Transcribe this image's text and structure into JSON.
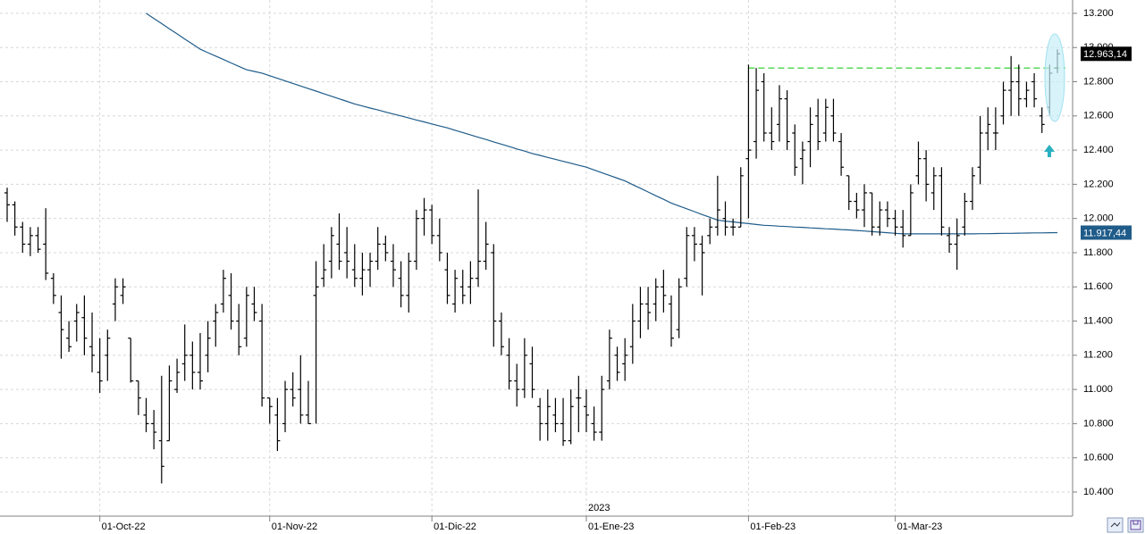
{
  "chart_data": {
    "type": "ohlc",
    "categories": [
      null,
      null,
      null,
      null,
      null,
      null,
      null,
      null,
      null,
      null,
      null,
      null,
      "01-Oct-22",
      null,
      null,
      null,
      null,
      null,
      null,
      null,
      null,
      null,
      null,
      null,
      null,
      null,
      null,
      null,
      null,
      null,
      null,
      null,
      null,
      null,
      "01-Nov-22",
      null,
      null,
      null,
      null,
      null,
      null,
      null,
      null,
      null,
      null,
      null,
      null,
      null,
      null,
      null,
      null,
      null,
      null,
      null,
      null,
      "01-Dic-22",
      null,
      null,
      null,
      null,
      null,
      null,
      null,
      null,
      null,
      null,
      null,
      null,
      null,
      null,
      null,
      null,
      null,
      null,
      null,
      "01-Ene-23",
      null,
      null,
      null,
      null,
      null,
      null,
      null,
      null,
      null,
      null,
      null,
      null,
      null,
      null,
      null,
      null,
      null,
      null,
      null,
      null,
      "01-Feb-23",
      null,
      null,
      null,
      null,
      null,
      null,
      null,
      null,
      null,
      null,
      null,
      null,
      null,
      null,
      null,
      null,
      null,
      null,
      "01-Mar-23",
      null,
      null,
      null,
      null,
      null,
      null,
      null,
      null,
      null,
      null,
      null,
      null,
      null,
      null,
      null,
      null,
      null,
      null,
      null,
      null,
      null
    ],
    "year_label": "2023",
    "ylim": [
      10259,
      13278
    ],
    "yticks": [
      {
        "value": 10400,
        "label": "10.400"
      },
      {
        "value": 10600,
        "label": "10.600"
      },
      {
        "value": 10800,
        "label": "10.800"
      },
      {
        "value": 11000,
        "label": "11.000"
      },
      {
        "value": 11200,
        "label": "11.200"
      },
      {
        "value": 11400,
        "label": "11.400"
      },
      {
        "value": 11600,
        "label": "11.600"
      },
      {
        "value": 11800,
        "label": "11.800"
      },
      {
        "value": 12000,
        "label": "12.000"
      },
      {
        "value": 12200,
        "label": "12.200"
      },
      {
        "value": 12400,
        "label": "12.400"
      },
      {
        "value": 12600,
        "label": "12.600"
      },
      {
        "value": 12800,
        "label": "12.800"
      },
      {
        "value": 13000,
        "label": "13.000"
      },
      {
        "value": 13200,
        "label": "13.200"
      }
    ],
    "grid": true,
    "ohlc": {
      "color": "#000000",
      "last_label": "12.963,14",
      "open": [
        12150,
        12080,
        11950,
        11850,
        11900,
        11850,
        11650,
        11450,
        11300,
        11400,
        11420,
        11250,
        11100,
        11200,
        11500,
        11550,
        11300,
        11050,
        10850,
        10800,
        10700,
        10700,
        11000,
        11150,
        11200,
        11100,
        11200,
        11400,
        11500,
        11550,
        11400,
        11300,
        11500,
        11400,
        10950,
        10850,
        10800,
        11000,
        11000,
        10850,
        11550,
        11650,
        11750,
        11850,
        11800,
        11700,
        11650,
        11700,
        11750,
        11850,
        11750,
        11650,
        11550,
        11750,
        12000,
        12050,
        11900,
        11700,
        11500,
        11600,
        11600,
        11650,
        11750,
        11800,
        11400,
        11200,
        11050,
        11000,
        11150,
        10900,
        10800,
        10850,
        10800,
        10700,
        10950,
        10900,
        10800,
        10750,
        11050,
        11200,
        11150,
        11250,
        11400,
        11500,
        11500,
        11600,
        11500,
        11350,
        11650,
        11900,
        11850,
        11900,
        11950,
        12000,
        11950,
        11950,
        12350,
        12450,
        12800,
        12500,
        12550,
        12700,
        12500,
        12350,
        12450,
        12600,
        12500,
        12600,
        12450,
        12250,
        12100,
        12050,
        12150,
        11950,
        12050,
        12000,
        11950,
        11900,
        12250,
        12350,
        12150,
        12250,
        11900,
        11850,
        11950,
        12100,
        12300,
        12500,
        12500,
        12600,
        12750,
        12800,
        12700,
        12800,
        12600,
        12650,
        12880
      ],
      "high": [
        12180,
        12100,
        11980,
        11950,
        11950,
        12060,
        11680,
        11550,
        11400,
        11500,
        11550,
        11450,
        11300,
        11350,
        11650,
        11650,
        11300,
        11050,
        10950,
        10880,
        11080,
        11140,
        11180,
        11380,
        11280,
        11330,
        11400,
        11500,
        11700,
        11680,
        11500,
        11600,
        11600,
        11500,
        10950,
        10950,
        11050,
        11100,
        11200,
        11050,
        11750,
        11850,
        11950,
        12030,
        11950,
        11850,
        11800,
        11800,
        11950,
        11900,
        11850,
        11750,
        11800,
        12050,
        12120,
        12080,
        12000,
        11800,
        11700,
        11700,
        11750,
        12170,
        11980,
        11850,
        11450,
        11300,
        11150,
        11300,
        11250,
        10950,
        11000,
        10950,
        10950,
        11000,
        11080,
        11000,
        10900,
        11080,
        11350,
        11250,
        11300,
        11500,
        11600,
        11600,
        11650,
        11700,
        11550,
        11650,
        11950,
        11950,
        11900,
        12000,
        12250,
        12100,
        12000,
        12300,
        12900,
        12880,
        12850,
        12650,
        12780,
        12750,
        12550,
        12450,
        12650,
        12700,
        12700,
        12700,
        12500,
        12250,
        12150,
        12200,
        12150,
        12100,
        12100,
        12050,
        12050,
        12200,
        12450,
        12400,
        12300,
        12300,
        11950,
        12000,
        12150,
        12300,
        12600,
        12650,
        12650,
        12800,
        12950,
        12900,
        12800,
        12850,
        12650,
        12900,
        12990
      ],
      "low": [
        11980,
        11900,
        11800,
        11780,
        11800,
        11640,
        11500,
        11180,
        11220,
        11280,
        11200,
        11100,
        10980,
        11050,
        11400,
        11500,
        11040,
        10850,
        10750,
        10650,
        10450,
        10700,
        10980,
        11050,
        11000,
        11000,
        11100,
        11250,
        11450,
        11350,
        11200,
        11250,
        11400,
        10900,
        10800,
        10640,
        10750,
        10900,
        10800,
        10800,
        10800,
        11600,
        11650,
        11700,
        11650,
        11600,
        11550,
        11600,
        11700,
        11750,
        11600,
        11480,
        11450,
        11700,
        11900,
        11850,
        11750,
        11500,
        11450,
        11500,
        11500,
        11600,
        11700,
        11250,
        11200,
        11000,
        10900,
        10950,
        10950,
        10700,
        10700,
        10750,
        10670,
        10680,
        10750,
        10750,
        10700,
        10700,
        11000,
        11050,
        11050,
        11150,
        11300,
        11350,
        11400,
        11450,
        11250,
        11300,
        11600,
        11750,
        11550,
        11850,
        11900,
        11900,
        11900,
        11950,
        12000,
        12350,
        12450,
        12400,
        12450,
        12400,
        12250,
        12200,
        12300,
        12400,
        12450,
        12450,
        12250,
        12050,
        12000,
        11950,
        11900,
        11900,
        11950,
        11900,
        11830,
        11900,
        12200,
        12100,
        12050,
        11900,
        11800,
        11700,
        11900,
        12050,
        12200,
        12400,
        12400,
        12550,
        12600,
        12600,
        12650,
        12650,
        12500,
        12600,
        12850
      ],
      "close": [
        12080,
        11950,
        11850,
        11900,
        11820,
        11680,
        11550,
        11350,
        11250,
        11450,
        11300,
        11200,
        11050,
        11300,
        11600,
        11600,
        11050,
        10950,
        10800,
        10750,
        10550,
        11050,
        11100,
        11200,
        11100,
        11050,
        11300,
        11450,
        11650,
        11400,
        11250,
        11550,
        11450,
        10950,
        10900,
        10700,
        11000,
        10950,
        10850,
        10800,
        11600,
        11700,
        11900,
        11750,
        11750,
        11650,
        11700,
        11750,
        11850,
        11800,
        11700,
        11550,
        11750,
        12000,
        12050,
        11900,
        11800,
        11550,
        11650,
        11550,
        11650,
        11750,
        11850,
        11400,
        11250,
        11050,
        11000,
        11200,
        11000,
        10800,
        10900,
        10800,
        10700,
        10900,
        10950,
        10850,
        10750,
        11000,
        11300,
        11100,
        11200,
        11400,
        11500,
        11450,
        11600,
        11550,
        11300,
        11600,
        11900,
        11850,
        11800,
        11950,
        12050,
        11950,
        11950,
        12250,
        12400,
        12750,
        12500,
        12450,
        12700,
        12450,
        12300,
        12400,
        12550,
        12450,
        12650,
        12500,
        12300,
        12100,
        12050,
        12150,
        11950,
        12050,
        12000,
        11950,
        11900,
        12150,
        12350,
        12200,
        12250,
        11950,
        11850,
        11900,
        12100,
        12250,
        12500,
        12550,
        12500,
        12750,
        12800,
        12700,
        12750,
        12700,
        12550,
        12850,
        12963.14
      ]
    },
    "moving_average": {
      "color": "#1f5c8a",
      "last_label": "11.917,44",
      "values": [
        null,
        null,
        null,
        null,
        null,
        null,
        null,
        null,
        null,
        null,
        null,
        null,
        null,
        null,
        null,
        null,
        null,
        null,
        13200,
        13170,
        13140,
        13110,
        13080,
        13050,
        13020,
        12990,
        12970,
        12950,
        12930,
        12910,
        12890,
        12870,
        12860,
        12850,
        12835,
        12820,
        12805,
        12790,
        12775,
        12760,
        12745,
        12730,
        12715,
        12700,
        12685,
        12670,
        12658,
        12646,
        12635,
        12623,
        12611,
        12600,
        12588,
        12576,
        12565,
        12553,
        12541,
        12530,
        12516,
        12503,
        12489,
        12475,
        12462,
        12448,
        12435,
        12421,
        12407,
        12394,
        12380,
        12369,
        12357,
        12346,
        12334,
        12323,
        12311,
        12300,
        12284,
        12268,
        12252,
        12236,
        12220,
        12198,
        12177,
        12155,
        12133,
        12112,
        12090,
        12073,
        12057,
        12040,
        12023,
        12007,
        11990,
        11985,
        11980,
        11975,
        11970,
        11965,
        11960,
        11958,
        11955,
        11953,
        11950,
        11948,
        11945,
        11943,
        11940,
        11938,
        11935,
        11933,
        11930,
        11927,
        11923,
        11920,
        11917,
        11913,
        11910,
        11910,
        11910,
        11910,
        11910,
        11910,
        11910,
        11910,
        11910,
        11910,
        11911,
        11911,
        11912,
        11913,
        11913,
        11914,
        11915,
        11916,
        11916,
        11917,
        11917.44
      ]
    },
    "level_line": {
      "value": 12880,
      "color": "#22cc22",
      "start_index": 96
    }
  }
}
